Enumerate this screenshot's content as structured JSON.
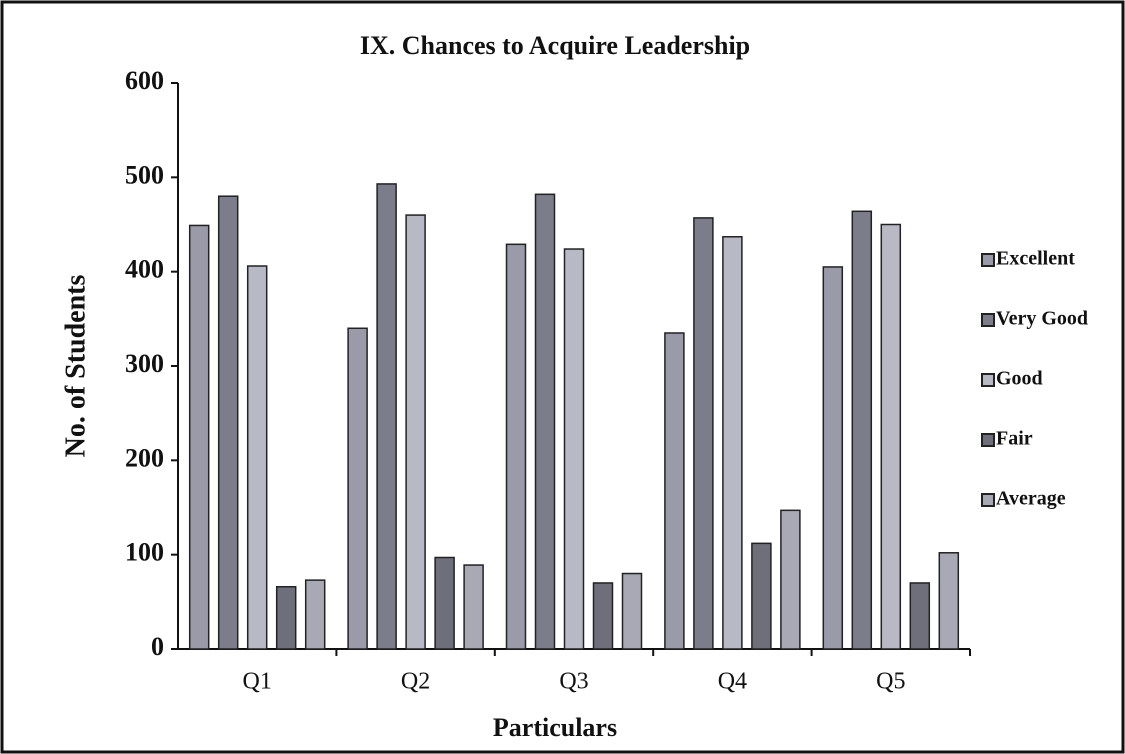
{
  "chart_data": {
    "type": "bar",
    "title": "IX. Chances to Acquire Leadership",
    "x_label": "Particulars",
    "y_label": "No. of Students",
    "categories": [
      "Q1",
      "Q2",
      "Q3",
      "Q4",
      "Q5"
    ],
    "series": [
      {
        "name": "Excellent",
        "color": "#9a9aa8",
        "values": [
          449,
          340,
          429,
          335,
          405
        ]
      },
      {
        "name": "Very Good",
        "color": "#7c7c8a",
        "values": [
          480,
          493,
          482,
          457,
          464
        ]
      },
      {
        "name": "Good",
        "color": "#b9b9c5",
        "values": [
          406,
          460,
          424,
          437,
          450
        ]
      },
      {
        "name": "Fair",
        "color": "#6f6f7c",
        "values": [
          66,
          97,
          70,
          112,
          70
        ]
      },
      {
        "name": "Average",
        "color": "#a9a9b6",
        "values": [
          73,
          89,
          80,
          147,
          102
        ]
      }
    ],
    "ylim": [
      0,
      600
    ],
    "yticks": [
      0,
      100,
      200,
      300,
      400,
      500,
      600
    ],
    "grid": false,
    "legend": "right"
  }
}
